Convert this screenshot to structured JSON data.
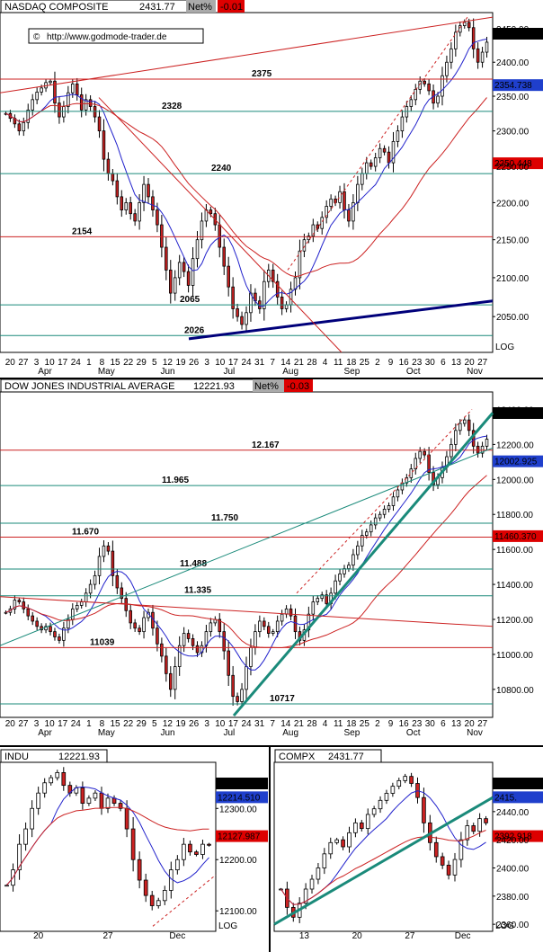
{
  "watermark": "http://www.godmode-trader.de",
  "colors": {
    "up": "#ffffff",
    "down": "#cc2222",
    "ma_red": "#cc2222",
    "ma_blue": "#2222cc",
    "support": "#1a8a7a",
    "resist": "#cc2222",
    "badge_red": "#dd0000",
    "badge_blue": "#1f3fcc"
  },
  "chart_data": [
    {
      "type": "candlestick",
      "name": "NASDAQ COMPOSITE",
      "header": {
        "title": "NASDAQ COMPOSITE",
        "value": "2431.77",
        "net_label": "Net%",
        "net_value": "-0.01"
      },
      "scale": "log",
      "axis_label": "LOG",
      "ylim": [
        2005,
        2475
      ],
      "y_ticks": [
        "2450.00",
        "2400.00",
        "2350.00",
        "2300.00",
        "2250.00",
        "2200.00",
        "2150.00",
        "2100.00",
        "2050.00"
      ],
      "x_ticks": [
        "20",
        "27",
        "3",
        "10",
        "17",
        "24",
        "1",
        "8",
        "15",
        "22",
        "29",
        "5",
        "12",
        "19",
        "26",
        "3",
        "10",
        "17",
        "24",
        "31",
        "7",
        "14",
        "21",
        "28",
        "4",
        "11",
        "18",
        "25",
        "2",
        "9",
        "16",
        "23",
        "30",
        "6",
        "13",
        "20",
        "27"
      ],
      "months": [
        "Apr",
        "May",
        "Jun",
        "Jul",
        "Aug",
        "Sep",
        "Oct",
        "Nov"
      ],
      "levels": [
        "2375",
        "2328",
        "2240",
        "2154",
        "2065",
        "2026"
      ],
      "badges": [
        {
          "text": "2431.77",
          "kind": "black"
        },
        {
          "text": "2354.738",
          "kind": "blue"
        },
        {
          "text": "2250.448",
          "kind": "red"
        }
      ],
      "series_close": [
        2325,
        2318,
        2310,
        2300,
        2312,
        2330,
        2345,
        2356,
        2362,
        2370,
        2372,
        2340,
        2320,
        2335,
        2355,
        2368,
        2352,
        2330,
        2345,
        2335,
        2320,
        2300,
        2260,
        2240,
        2230,
        2208,
        2190,
        2200,
        2185,
        2175,
        2200,
        2225,
        2208,
        2190,
        2170,
        2140,
        2110,
        2080,
        2100,
        2120,
        2108,
        2090,
        2125,
        2150,
        2175,
        2190,
        2185,
        2170,
        2140,
        2115,
        2088,
        2060,
        2050,
        2040,
        2055,
        2080,
        2070,
        2060,
        2095,
        2110,
        2095,
        2075,
        2060,
        2065,
        2085,
        2100,
        2135,
        2150,
        2155,
        2170,
        2165,
        2180,
        2195,
        2205,
        2200,
        2215,
        2190,
        2175,
        2200,
        2225,
        2240,
        2255,
        2250,
        2262,
        2275,
        2270,
        2255,
        2285,
        2300,
        2320,
        2335,
        2345,
        2360,
        2372,
        2368,
        2358,
        2340,
        2350,
        2380,
        2400,
        2420,
        2445,
        2455,
        2460,
        2452,
        2420,
        2400,
        2415,
        2430
      ]
    },
    {
      "type": "candlestick",
      "name": "DOW JONES INDUSTRIAL AVERAGE",
      "header": {
        "title": "DOW JONES INDUSTRIAL AVERAGE",
        "value": "12221.93",
        "net_label": "Net%",
        "net_value": "-0.03"
      },
      "scale": "linear",
      "ylim": [
        10640,
        12500
      ],
      "y_ticks": [
        "12400.00",
        "12200.00",
        "12000.00",
        "11800.00",
        "11600.00",
        "11400.00",
        "11200.00",
        "11000.00",
        "10800.00"
      ],
      "x_ticks": [
        "20",
        "27",
        "3",
        "10",
        "17",
        "24",
        "1",
        "8",
        "15",
        "22",
        "29",
        "5",
        "12",
        "19",
        "26",
        "3",
        "10",
        "17",
        "24",
        "31",
        "7",
        "14",
        "21",
        "28",
        "4",
        "11",
        "18",
        "25",
        "2",
        "9",
        "16",
        "23",
        "30",
        "6",
        "13",
        "20",
        "27"
      ],
      "months": [
        "Apr",
        "May",
        "Jun",
        "Jul",
        "Aug",
        "Sep",
        "Oct",
        "Nov"
      ],
      "levels": [
        "12.167",
        "11.965",
        "11.750",
        "11.670",
        "11.488",
        "11.335",
        "11039",
        "10717"
      ],
      "badges": [
        {
          "text": "12230.26",
          "kind": "black"
        },
        {
          "text": "12002.925",
          "kind": "blue"
        },
        {
          "text": "11460.370",
          "kind": "red"
        }
      ],
      "series_close": [
        11240,
        11260,
        11310,
        11300,
        11260,
        11220,
        11190,
        11160,
        11140,
        11160,
        11130,
        11100,
        11080,
        11150,
        11200,
        11260,
        11280,
        11300,
        11350,
        11400,
        11450,
        11560,
        11620,
        11590,
        11450,
        11380,
        11320,
        11250,
        11180,
        11150,
        11130,
        11210,
        11240,
        11150,
        11060,
        10990,
        10890,
        10800,
        10930,
        11050,
        11120,
        11090,
        11050,
        11010,
        11050,
        11130,
        11180,
        11200,
        11130,
        11020,
        10880,
        10760,
        10730,
        10800,
        10930,
        11040,
        11130,
        11190,
        11160,
        11120,
        11130,
        11190,
        11230,
        11260,
        11220,
        11130,
        11080,
        11140,
        11230,
        11300,
        11320,
        11340,
        11290,
        11350,
        11420,
        11460,
        11490,
        11510,
        11570,
        11620,
        11680,
        11700,
        11740,
        11780,
        11800,
        11830,
        11850,
        11900,
        11940,
        11980,
        12010,
        12060,
        12120,
        12160,
        12140,
        12040,
        11970,
        12010,
        12070,
        12130,
        12200,
        12280,
        12320,
        12340,
        12280,
        12190,
        12150,
        12190,
        12230
      ]
    },
    {
      "type": "candlestick",
      "name": "INDU",
      "header": {
        "title": "INDU",
        "value": "12221.93"
      },
      "ylim": [
        12060,
        12390
      ],
      "y_ticks": [
        "12300.00",
        "12200.00",
        "12100.00"
      ],
      "x_ticks": [
        "20",
        "27",
        "Dec"
      ],
      "axis_label": "LOG",
      "badges": [
        {
          "text": "12230.26",
          "kind": "black"
        },
        {
          "text": "12214.510",
          "kind": "blue"
        },
        {
          "text": "12127.987",
          "kind": "red"
        }
      ],
      "series_close": [
        12150,
        12180,
        12230,
        12260,
        12300,
        12330,
        12350,
        12360,
        12370,
        12345,
        12330,
        12340,
        12310,
        12320,
        12330,
        12300,
        12320,
        12310,
        12300,
        12260,
        12200,
        12160,
        12130,
        12110,
        12120,
        12140,
        12180,
        12200,
        12230,
        12215,
        12210,
        12230,
        12228
      ]
    },
    {
      "type": "candlestick",
      "name": "COMPX",
      "header": {
        "title": "COMPX",
        "value": "2431.77"
      },
      "ylim": [
        2355,
        2475
      ],
      "y_ticks": [
        "2460.00",
        "2440.00",
        "2420.00",
        "2400.00",
        "2380.00",
        "2360.00"
      ],
      "x_ticks": [
        "13",
        "20",
        "27",
        "Dec"
      ],
      "axis_label": "LOG",
      "badges": [
        {
          "text": "2432.22",
          "kind": "black"
        },
        {
          "text": "2415.",
          "kind": "blue"
        },
        {
          "text": "2392.918",
          "kind": "red"
        }
      ],
      "series_close": [
        2385,
        2372,
        2365,
        2375,
        2385,
        2392,
        2400,
        2410,
        2418,
        2420,
        2415,
        2425,
        2432,
        2428,
        2438,
        2442,
        2448,
        2453,
        2458,
        2462,
        2465,
        2460,
        2450,
        2432,
        2418,
        2408,
        2402,
        2395,
        2406,
        2420,
        2430,
        2426,
        2435,
        2432
      ]
    }
  ]
}
